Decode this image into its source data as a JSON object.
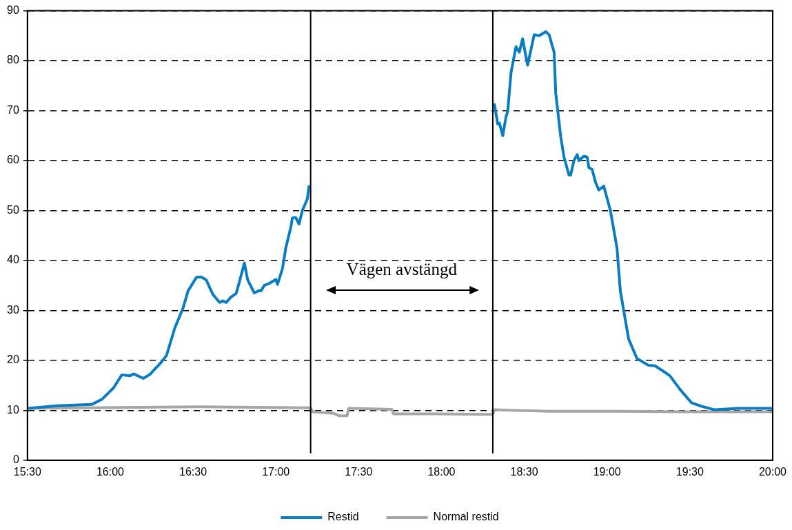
{
  "chart_data": {
    "type": "line",
    "x": [
      15.5,
      15.68,
      15.89,
      15.95,
      16.02,
      16.07,
      16.12,
      16.14,
      16.2,
      16.24,
      16.31,
      16.34,
      16.39,
      16.44,
      16.47,
      16.52,
      16.55,
      16.58,
      16.6,
      16.62,
      16.66,
      16.68,
      16.7,
      16.73,
      16.76,
      16.78,
      16.81,
      16.83,
      16.87,
      16.9,
      16.91,
      16.93,
      16.96,
      17.0,
      17.01,
      17.04,
      17.06,
      17.09,
      17.1,
      17.12,
      17.14,
      17.16,
      17.19,
      17.2,
      17.7,
      18.32,
      18.34,
      18.35,
      18.37,
      18.39,
      18.4,
      18.42,
      18.45,
      18.47,
      18.49,
      18.52,
      18.56,
      18.59,
      18.63,
      18.65,
      18.68,
      18.69,
      18.72,
      18.74,
      18.77,
      18.78,
      18.8,
      18.82,
      18.83,
      18.86,
      18.88,
      18.89,
      18.91,
      18.93,
      18.95,
      18.98,
      19.02,
      19.06,
      19.08,
      19.13,
      19.18,
      19.25,
      19.29,
      19.35,
      19.38,
      19.44,
      19.51,
      19.57,
      19.65,
      19.79,
      20
    ],
    "series": [
      {
        "name": "Restid",
        "color": "#0a7dc2",
        "values": [
          10.4,
          10.9,
          11.2,
          12.2,
          14.5,
          17.1,
          16.9,
          17.3,
          16.4,
          17.2,
          19.7,
          21,
          26.5,
          30.5,
          33.9,
          36.6,
          36.7,
          36.1,
          34.6,
          33.2,
          31.6,
          31.9,
          31.6,
          32.7,
          33.4,
          35.7,
          39.5,
          36.1,
          33.5,
          34,
          33.9,
          35,
          35.4,
          36.2,
          35.2,
          38.4,
          42.5,
          46.6,
          48.5,
          48.6,
          47.3,
          50,
          52.3,
          54.8,
          null,
          71.2,
          67.3,
          67.5,
          65,
          68.8,
          69.8,
          77.6,
          82.8,
          81.7,
          84.4,
          79.1,
          85.2,
          85,
          85.8,
          85.2,
          81.7,
          73.5,
          64.8,
          60.7,
          57.1,
          57.1,
          60,
          61.2,
          60,
          60.9,
          60.7,
          58.6,
          58.2,
          55.7,
          54.1,
          54.9,
          50,
          42.5,
          33.9,
          24.3,
          20.4,
          19,
          18.9,
          17.6,
          16.9,
          14.2,
          11.5,
          10.8,
          10.1,
          10.4,
          10.4
        ]
      },
      {
        "name": "Normal restid",
        "color": "#a6a6a6",
        "x": [
          15.5,
          16.55,
          17.21,
          17.22,
          17.35,
          17.38,
          17.43,
          17.44,
          17.7,
          17.71,
          17.97,
          18.31,
          18.32,
          18.65,
          19.07,
          19.48,
          20
        ],
        "values": [
          10.4,
          10.7,
          10.5,
          9.7,
          9.4,
          8.9,
          8.9,
          10.4,
          10.2,
          9.3,
          9.3,
          9.2,
          10.1,
          9.8,
          9.8,
          9.7,
          9.7
        ]
      }
    ],
    "xlim": [
      15.5,
      20
    ],
    "xticks": [
      {
        "value": 15.5,
        "label": "15:30"
      },
      {
        "value": 16,
        "label": "16:00"
      },
      {
        "value": 16.5,
        "label": "16:30"
      },
      {
        "value": 17,
        "label": "17:00"
      },
      {
        "value": 17.5,
        "label": "17:30"
      },
      {
        "value": 18,
        "label": "18:00"
      },
      {
        "value": 18.5,
        "label": "18:30"
      },
      {
        "value": 19,
        "label": "19:00"
      },
      {
        "value": 19.5,
        "label": "19:30"
      },
      {
        "value": 20,
        "label": "20:00"
      }
    ],
    "ylim": [
      0,
      90
    ],
    "yticks": [
      0,
      10,
      20,
      30,
      40,
      50,
      60,
      70,
      80,
      90
    ],
    "grid": "y",
    "legend": "bottom",
    "marker": "none",
    "line_style": "solid",
    "ref_lines": [
      {
        "axis": "x",
        "value": 17.21,
        "color": "#000000"
      },
      {
        "axis": "x",
        "value": 18.31,
        "color": "#000000"
      }
    ],
    "annotations": [
      "Vägen avstängd"
    ]
  }
}
